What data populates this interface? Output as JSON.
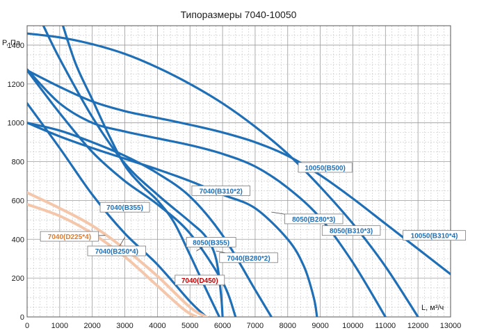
{
  "chart_data": {
    "type": "line",
    "title": "Типоразмеры 7040-10050",
    "xlabel": "L, м³/ч",
    "ylabel": "P, Па",
    "xlim": [
      0,
      13000
    ],
    "ylim": [
      0,
      1500
    ],
    "x_ticks": [
      0,
      1000,
      2000,
      3000,
      4000,
      5000,
      6000,
      7000,
      8000,
      9000,
      10000,
      11000,
      12000,
      13000
    ],
    "y_ticks": [
      0,
      200,
      400,
      600,
      800,
      1000,
      1200,
      1400
    ],
    "x_tick_labels": [
      "0",
      "1000",
      "2000",
      "3000",
      "4000",
      "5000",
      "6000",
      "7000",
      "8000",
      "9000",
      "10000",
      "11000",
      "12000",
      "13000"
    ],
    "y_tick_labels": [
      "0",
      "200",
      "400",
      "600",
      "800",
      "1000",
      "1200",
      "1400"
    ],
    "grid": true,
    "colors": {
      "blue": "#1f6fb6",
      "peach": "#f4c6aa",
      "label_blue": "#1f6fb6",
      "label_orange": "#e07b2b",
      "label_red": "#c00000"
    },
    "series": [
      {
        "name": "10050(B500)",
        "color": "blue",
        "label_style": "blue",
        "label_anchor": [
          8800,
          770
        ],
        "x": [
          0,
          1000,
          2000,
          3000,
          4000,
          5000,
          6000,
          7000,
          8000,
          9000,
          10000,
          11000,
          12000
        ],
        "y": [
          1460,
          1440,
          1405,
          1355,
          1285,
          1200,
          1100,
          980,
          840,
          670,
          480,
          260,
          0
        ]
      },
      {
        "name": "10050(B310*4)",
        "color": "blue",
        "label_style": "blue",
        "label_anchor": [
          11800,
          430
        ],
        "x": [
          0,
          1000,
          2000,
          3000,
          4000,
          5000,
          6000,
          7000,
          8000,
          9000,
          10000,
          11000,
          12000,
          13000
        ],
        "y": [
          1270,
          1185,
          1110,
          1060,
          1025,
          990,
          950,
          900,
          830,
          730,
          610,
          480,
          350,
          220
        ]
      },
      {
        "name": "8050(B310*3)",
        "color": "blue",
        "label_style": "blue",
        "label_anchor": [
          9700,
          455
        ],
        "x": [
          0,
          1000,
          2000,
          3000,
          4000,
          5000,
          6000,
          7000,
          8000,
          9000,
          10000,
          11000
        ],
        "y": [
          1275,
          1100,
          1000,
          955,
          920,
          885,
          840,
          775,
          665,
          510,
          280,
          0
        ]
      },
      {
        "name": "8050(B280*3)",
        "color": "blue",
        "label_style": "blue",
        "label_anchor": [
          7500,
          540
        ],
        "x": [
          0,
          1000,
          2000,
          3000,
          4000,
          5000,
          6000,
          7000,
          8000,
          8500,
          8800,
          8900
        ],
        "y": [
          1000,
          930,
          870,
          815,
          760,
          700,
          630,
          560,
          400,
          260,
          100,
          0
        ]
      },
      {
        "name": "7040(B310*2)",
        "color": "blue",
        "label_style": "blue",
        "label_anchor": [
          5100,
          655
        ],
        "x": [
          0,
          1000,
          2000,
          3000,
          4000,
          5000,
          6000,
          7000,
          7500
        ],
        "y": [
          1000,
          960,
          900,
          830,
          740,
          620,
          420,
          140,
          0
        ]
      },
      {
        "name": "7040(B280*2)",
        "color": "blue",
        "label_style": "blue",
        "label_anchor": [
          5800,
          340
        ],
        "x": [
          0,
          1000,
          2000,
          3000,
          4000,
          5000,
          6000,
          6400
        ],
        "y": [
          1270,
          1050,
          850,
          700,
          580,
          430,
          180,
          0
        ]
      },
      {
        "name": "8050(B355)",
        "color": "blue",
        "label_style": "blue",
        "label_anchor": [
          5200,
          340
        ],
        "x": [
          500,
          1000,
          2000,
          3000,
          4000,
          5000,
          5500,
          5800,
          5950,
          6000
        ],
        "y": [
          1500,
          1330,
          1030,
          790,
          630,
          490,
          410,
          300,
          120,
          0
        ]
      },
      {
        "name": "7040(B355)",
        "color": "blue",
        "label_style": "blue",
        "label_anchor": [
          3300,
          560
        ],
        "x": [
          1100,
          1500,
          2000,
          2500,
          3000,
          3500,
          4000,
          4500,
          5000,
          5500,
          5900
        ],
        "y": [
          1500,
          1300,
          1120,
          940,
          780,
          680,
          600,
          490,
          320,
          140,
          0
        ]
      },
      {
        "name": "7040(B250*4)",
        "color": "blue",
        "label_style": "blue",
        "label_anchor": [
          3000,
          410
        ],
        "x": [
          0,
          1000,
          2000,
          3000,
          4000,
          5000,
          5500
        ],
        "y": [
          1100,
          870,
          630,
          430,
          270,
          80,
          0
        ]
      },
      {
        "name": "7040(D225*4)",
        "color": "peach",
        "label_style": "orange",
        "label_anchor": [
          2400,
          420
        ],
        "x": [
          0,
          1000,
          2000,
          3000,
          4000,
          5000,
          5500
        ],
        "y": [
          640,
          560,
          470,
          350,
          210,
          50,
          0
        ]
      },
      {
        "name": "7040(D450)",
        "color": "peach",
        "label_style": "red",
        "label_anchor": [
          4900,
          190
        ],
        "x": [
          0,
          1000,
          2000,
          3000,
          4000,
          4800,
          5200
        ],
        "y": [
          580,
          520,
          430,
          310,
          160,
          40,
          0
        ]
      }
    ],
    "callouts": [
      {
        "text": "10050(B500)",
        "series": 0,
        "style": "blue",
        "box_at": [
          9150,
          770
        ]
      },
      {
        "text": "10050(B310*4)",
        "series": 1,
        "style": "blue",
        "box_at": [
          12500,
          420
        ]
      },
      {
        "text": "8050(B310*3)",
        "series": 2,
        "style": "blue",
        "box_at": [
          9950,
          445
        ]
      },
      {
        "text": "8050(B280*3)",
        "series": 3,
        "style": "blue",
        "box_at": [
          8800,
          505
        ]
      },
      {
        "text": "7040(B310*2)",
        "series": 4,
        "style": "blue",
        "box_at": [
          5950,
          650
        ]
      },
      {
        "text": "7040(B280*2)",
        "series": 5,
        "style": "blue",
        "box_at": [
          6800,
          305
        ]
      },
      {
        "text": "8050(B355)",
        "series": 6,
        "style": "blue",
        "box_at": [
          5650,
          385
        ]
      },
      {
        "text": "7040(B355)",
        "series": 7,
        "style": "blue",
        "box_at": [
          3000,
          565
        ]
      },
      {
        "text": "7040(B250*4)",
        "series": 8,
        "style": "blue",
        "box_at": [
          2750,
          340
        ]
      },
      {
        "text": "7040(D225*4)",
        "series": 9,
        "style": "orange",
        "box_at": [
          1300,
          415
        ]
      },
      {
        "text": "7040(D450)",
        "series": 10,
        "style": "red",
        "box_at": [
          5300,
          190
        ]
      }
    ]
  }
}
